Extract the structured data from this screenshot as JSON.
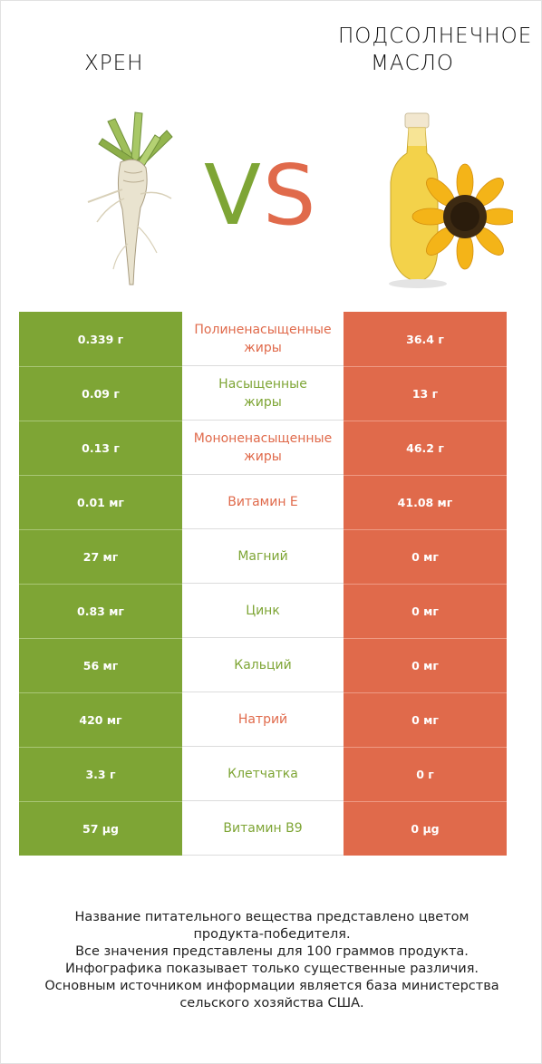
{
  "left_product": {
    "name": "ХРЕН",
    "color": "#7ea535",
    "image": "horseradish-root-image"
  },
  "right_product": {
    "name_line1": "ПОДСОЛНЕЧНОЕ",
    "name_line2": "МАСЛО",
    "color": "#e06a4b",
    "image": "sunflower-oil-bottle-image"
  },
  "vs": {
    "v": "V",
    "s": "S"
  },
  "rows": [
    {
      "left": "0.339 г",
      "label_line1": "Полиненасыщенные",
      "label_line2": "жиры",
      "right": "36.4 г",
      "winner": "right"
    },
    {
      "left": "0.09 г",
      "label_line1": "Насыщенные",
      "label_line2": "жиры",
      "right": "13 г",
      "winner": "left"
    },
    {
      "left": "0.13 г",
      "label_line1": "Мононенасыщенные",
      "label_line2": "жиры",
      "right": "46.2 г",
      "winner": "right"
    },
    {
      "left": "0.01 мг",
      "label_line1": "Витамин E",
      "label_line2": "",
      "right": "41.08 мг",
      "winner": "right"
    },
    {
      "left": "27 мг",
      "label_line1": "Магний",
      "label_line2": "",
      "right": "0 мг",
      "winner": "left"
    },
    {
      "left": "0.83 мг",
      "label_line1": "Цинк",
      "label_line2": "",
      "right": "0 мг",
      "winner": "left"
    },
    {
      "left": "56 мг",
      "label_line1": "Кальций",
      "label_line2": "",
      "right": "0 мг",
      "winner": "left"
    },
    {
      "left": "420 мг",
      "label_line1": "Натрий",
      "label_line2": "",
      "right": "0 мг",
      "winner": "right"
    },
    {
      "left": "3.3 г",
      "label_line1": "Клетчатка",
      "label_line2": "",
      "right": "0 г",
      "winner": "left"
    },
    {
      "left": "57 µg",
      "label_line1": "Витамин B9",
      "label_line2": "",
      "right": "0 µg",
      "winner": "left"
    }
  ],
  "footer": {
    "line1": "Название питательного вещества представлено цветом",
    "line2": "продукта-победителя.",
    "line3": "Все значения представлены для 100 граммов продукта.",
    "line4": "Инфографика показывает только существенные различия.",
    "line5": "Основным источником информации является база министерства",
    "line6": "сельского хозяйства США."
  }
}
